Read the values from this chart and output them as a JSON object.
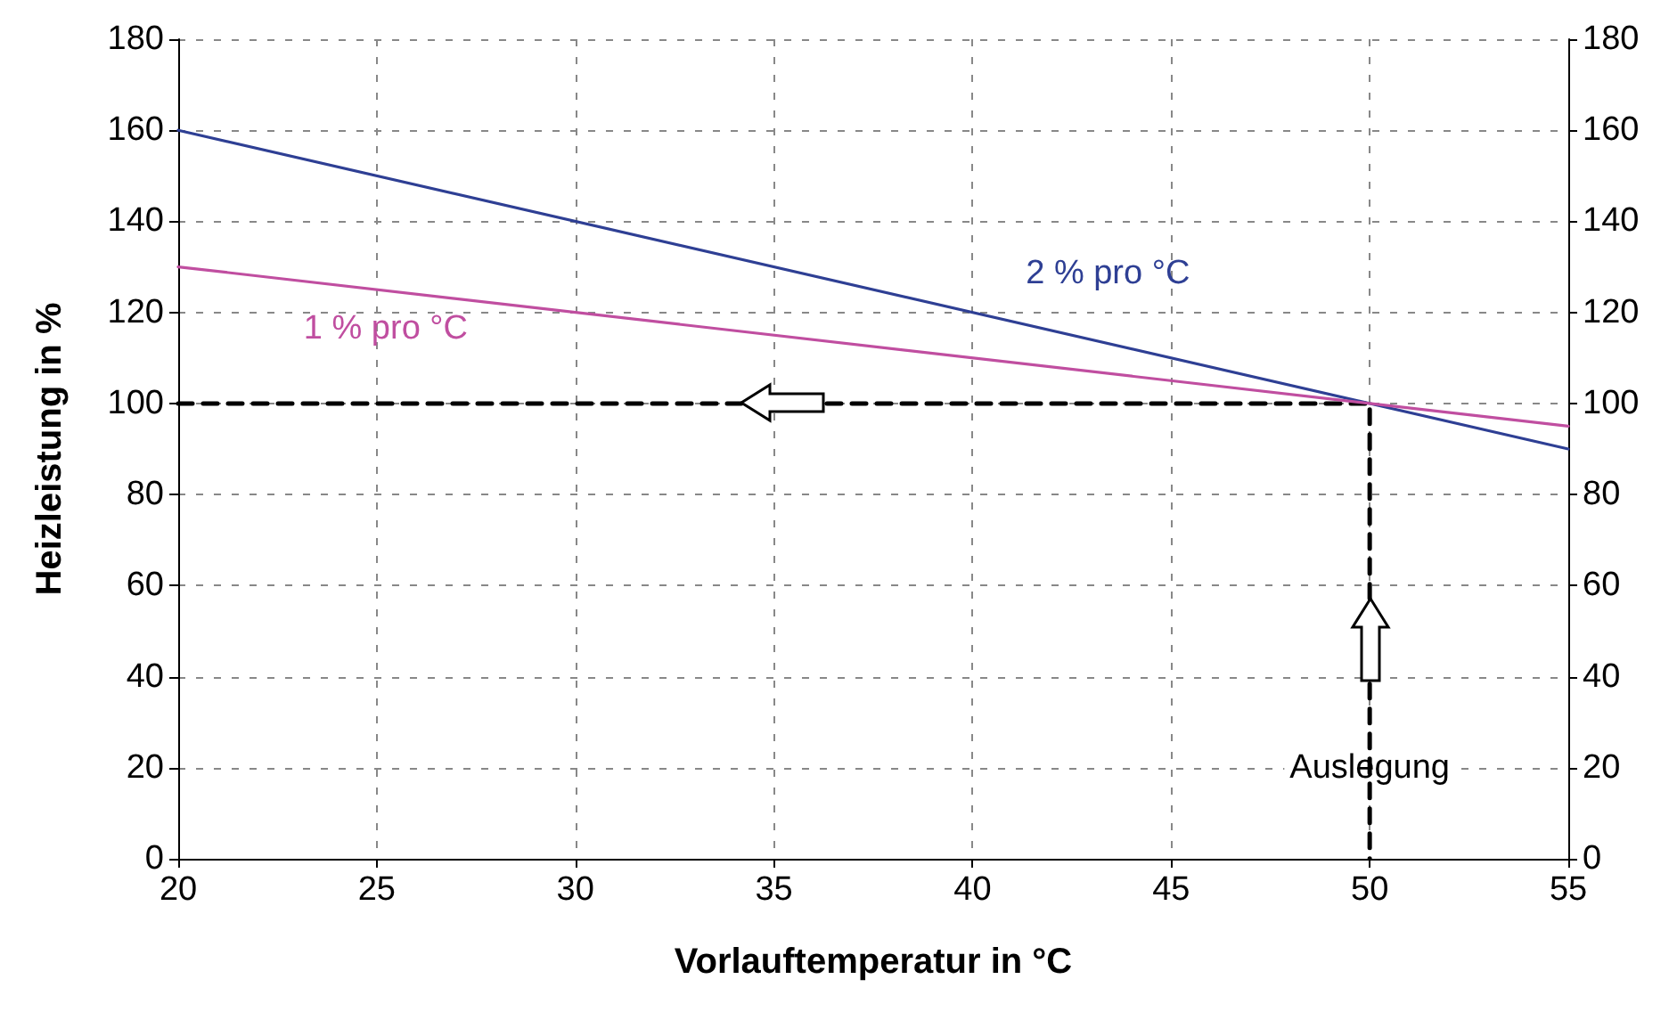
{
  "chart_data": {
    "type": "line",
    "xlabel": "Vorlauftemperatur in °C",
    "ylabel": "Heizleistung in %",
    "annotations": [
      {
        "text": "Auslegung",
        "x": 50,
        "y": 20
      }
    ],
    "series": [
      {
        "name": "2 % pro °C",
        "color": "#2e3f94",
        "x": [
          20,
          55
        ],
        "values": [
          160,
          90
        ]
      },
      {
        "name": "1 % pro °C",
        "color": "#c04ea0",
        "x": [
          20,
          55
        ],
        "values": [
          130,
          95
        ]
      },
      {
        "color": "#000000",
        "x": [
          20,
          50,
          50
        ],
        "values": [
          100,
          100,
          0
        ],
        "line_style": "dashed"
      }
    ],
    "xlim": [
      20,
      55
    ],
    "xticks": [
      20,
      25,
      30,
      35,
      40,
      45,
      50,
      55
    ],
    "ylim": [
      0,
      180
    ],
    "yticks": [
      0,
      20,
      40,
      60,
      80,
      100,
      120,
      140,
      160,
      180
    ],
    "y2lim": [
      0,
      180
    ],
    "y2ticks": [
      0,
      20,
      40,
      60,
      80,
      100,
      120,
      140,
      160,
      180
    ],
    "grid": true,
    "legend": false,
    "marker": "none",
    "line_style": "solid"
  }
}
